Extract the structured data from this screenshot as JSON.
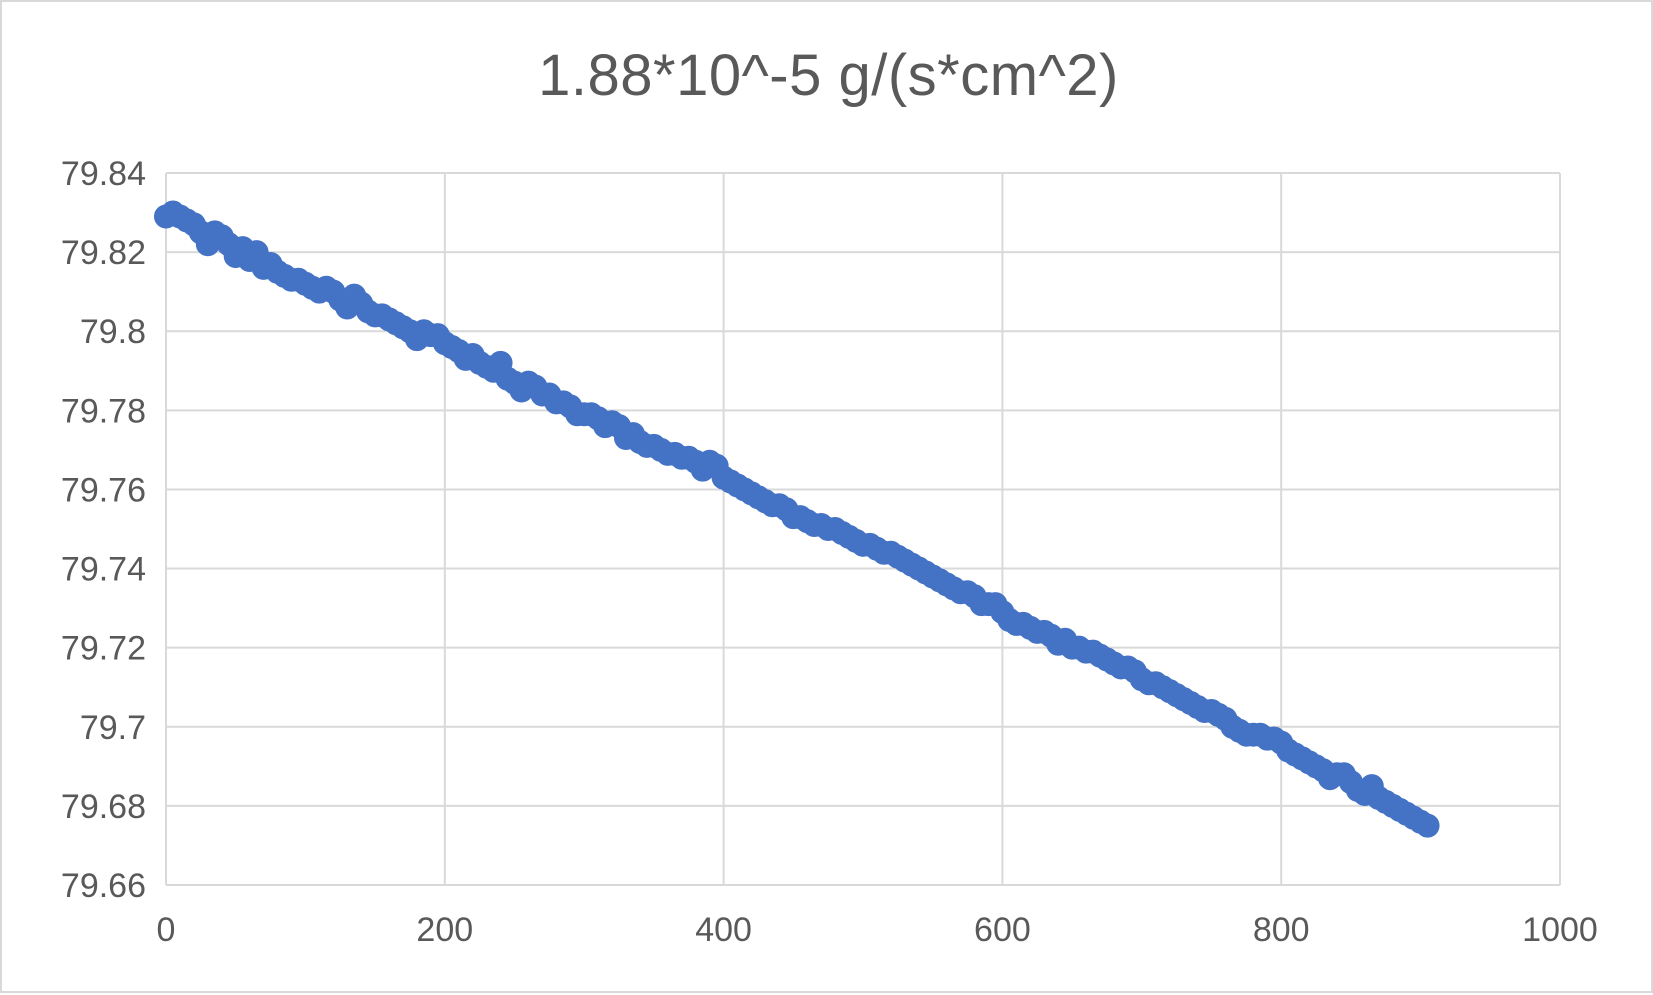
{
  "chart_data": {
    "type": "scatter",
    "title": "1.88*10^-5 g/(s*cm^2)",
    "xlabel": "",
    "ylabel": "",
    "xlim": [
      0,
      1000
    ],
    "ylim": [
      79.66,
      79.84
    ],
    "x_ticks": [
      "0",
      "200",
      "400",
      "600",
      "800",
      "1000"
    ],
    "y_ticks": [
      "79.84",
      "79.82",
      "79.8",
      "79.78",
      "79.76",
      "79.74",
      "79.72",
      "79.7",
      "79.68",
      "79.66"
    ],
    "grid": true,
    "legend": "none",
    "marker_color": "#4472c4",
    "series": [
      {
        "points": [
          [
            0,
            79.829
          ],
          [
            5,
            79.83
          ],
          [
            10,
            79.829
          ],
          [
            15,
            79.828
          ],
          [
            20,
            79.827
          ],
          [
            25,
            79.825
          ],
          [
            30,
            79.822
          ],
          [
            35,
            79.825
          ],
          [
            40,
            79.824
          ],
          [
            45,
            79.822
          ],
          [
            50,
            79.819
          ],
          [
            55,
            79.821
          ],
          [
            60,
            79.818
          ],
          [
            65,
            79.82
          ],
          [
            70,
            79.816
          ],
          [
            75,
            79.817
          ],
          [
            80,
            79.815
          ],
          [
            85,
            79.814
          ],
          [
            90,
            79.813
          ],
          [
            95,
            79.813
          ],
          [
            100,
            79.812
          ],
          [
            105,
            79.811
          ],
          [
            110,
            79.81
          ],
          [
            115,
            79.811
          ],
          [
            120,
            79.81
          ],
          [
            125,
            79.808
          ],
          [
            130,
            79.806
          ],
          [
            135,
            79.809
          ],
          [
            140,
            79.807
          ],
          [
            145,
            79.805
          ],
          [
            150,
            79.804
          ],
          [
            155,
            79.804
          ],
          [
            160,
            79.803
          ],
          [
            165,
            79.802
          ],
          [
            170,
            79.801
          ],
          [
            175,
            79.8
          ],
          [
            180,
            79.798
          ],
          [
            185,
            79.8
          ],
          [
            190,
            79.799
          ],
          [
            195,
            79.799
          ],
          [
            200,
            79.797
          ],
          [
            205,
            79.796
          ],
          [
            210,
            79.795
          ],
          [
            215,
            79.793
          ],
          [
            220,
            79.794
          ],
          [
            225,
            79.792
          ],
          [
            230,
            79.791
          ],
          [
            235,
            79.79
          ],
          [
            240,
            79.792
          ],
          [
            245,
            79.788
          ],
          [
            250,
            79.787
          ],
          [
            255,
            79.785
          ],
          [
            260,
            79.787
          ],
          [
            265,
            79.786
          ],
          [
            270,
            79.784
          ],
          [
            275,
            79.784
          ],
          [
            280,
            79.782
          ],
          [
            285,
            79.782
          ],
          [
            290,
            79.781
          ],
          [
            295,
            79.779
          ],
          [
            300,
            79.779
          ],
          [
            305,
            79.779
          ],
          [
            310,
            79.778
          ],
          [
            315,
            79.776
          ],
          [
            320,
            79.777
          ],
          [
            325,
            79.776
          ],
          [
            330,
            79.773
          ],
          [
            335,
            79.774
          ],
          [
            340,
            79.772
          ],
          [
            345,
            79.771
          ],
          [
            350,
            79.771
          ],
          [
            355,
            79.77
          ],
          [
            360,
            79.769
          ],
          [
            365,
            79.769
          ],
          [
            370,
            79.768
          ],
          [
            375,
            79.768
          ],
          [
            380,
            79.767
          ],
          [
            385,
            79.765
          ],
          [
            390,
            79.767
          ],
          [
            395,
            79.766
          ],
          [
            400,
            79.763
          ],
          [
            405,
            79.762
          ],
          [
            410,
            79.761
          ],
          [
            415,
            79.76
          ],
          [
            420,
            79.759
          ],
          [
            425,
            79.758
          ],
          [
            430,
            79.757
          ],
          [
            435,
            79.756
          ],
          [
            440,
            79.756
          ],
          [
            445,
            79.755
          ],
          [
            450,
            79.753
          ],
          [
            455,
            79.753
          ],
          [
            460,
            79.752
          ],
          [
            465,
            79.751
          ],
          [
            470,
            79.751
          ],
          [
            475,
            79.75
          ],
          [
            480,
            79.75
          ],
          [
            485,
            79.749
          ],
          [
            490,
            79.748
          ],
          [
            495,
            79.747
          ],
          [
            500,
            79.746
          ],
          [
            505,
            79.746
          ],
          [
            510,
            79.745
          ],
          [
            515,
            79.744
          ],
          [
            520,
            79.744
          ],
          [
            525,
            79.743
          ],
          [
            530,
            79.742
          ],
          [
            535,
            79.741
          ],
          [
            540,
            79.74
          ],
          [
            545,
            79.739
          ],
          [
            550,
            79.738
          ],
          [
            555,
            79.737
          ],
          [
            560,
            79.736
          ],
          [
            565,
            79.735
          ],
          [
            570,
            79.734
          ],
          [
            575,
            79.734
          ],
          [
            580,
            79.733
          ],
          [
            585,
            79.731
          ],
          [
            590,
            79.731
          ],
          [
            595,
            79.731
          ],
          [
            600,
            79.729
          ],
          [
            605,
            79.727
          ],
          [
            610,
            79.726
          ],
          [
            615,
            79.726
          ],
          [
            620,
            79.725
          ],
          [
            625,
            79.724
          ],
          [
            630,
            79.724
          ],
          [
            635,
            79.723
          ],
          [
            640,
            79.721
          ],
          [
            645,
            79.722
          ],
          [
            650,
            79.72
          ],
          [
            655,
            79.72
          ],
          [
            660,
            79.719
          ],
          [
            665,
            79.719
          ],
          [
            670,
            79.718
          ],
          [
            675,
            79.717
          ],
          [
            680,
            79.716
          ],
          [
            685,
            79.715
          ],
          [
            690,
            79.715
          ],
          [
            695,
            79.714
          ],
          [
            700,
            79.712
          ],
          [
            705,
            79.711
          ],
          [
            710,
            79.711
          ],
          [
            715,
            79.71
          ],
          [
            720,
            79.709
          ],
          [
            725,
            79.708
          ],
          [
            730,
            79.707
          ],
          [
            735,
            79.706
          ],
          [
            740,
            79.705
          ],
          [
            745,
            79.704
          ],
          [
            750,
            79.704
          ],
          [
            755,
            79.703
          ],
          [
            760,
            79.702
          ],
          [
            765,
            79.7
          ],
          [
            770,
            79.699
          ],
          [
            775,
            79.698
          ],
          [
            780,
            79.698
          ],
          [
            785,
            79.698
          ],
          [
            790,
            79.697
          ],
          [
            795,
            79.697
          ],
          [
            800,
            79.696
          ],
          [
            805,
            79.694
          ],
          [
            810,
            79.693
          ],
          [
            815,
            79.692
          ],
          [
            820,
            79.691
          ],
          [
            825,
            79.69
          ],
          [
            830,
            79.689
          ],
          [
            835,
            79.687
          ],
          [
            840,
            79.688
          ],
          [
            845,
            79.688
          ],
          [
            850,
            79.686
          ],
          [
            855,
            79.684
          ],
          [
            860,
            79.683
          ],
          [
            865,
            79.685
          ],
          [
            870,
            79.682
          ],
          [
            875,
            79.681
          ],
          [
            880,
            79.68
          ],
          [
            885,
            79.679
          ],
          [
            890,
            79.678
          ],
          [
            895,
            79.677
          ],
          [
            900,
            79.676
          ],
          [
            905,
            79.675
          ]
        ]
      }
    ]
  }
}
